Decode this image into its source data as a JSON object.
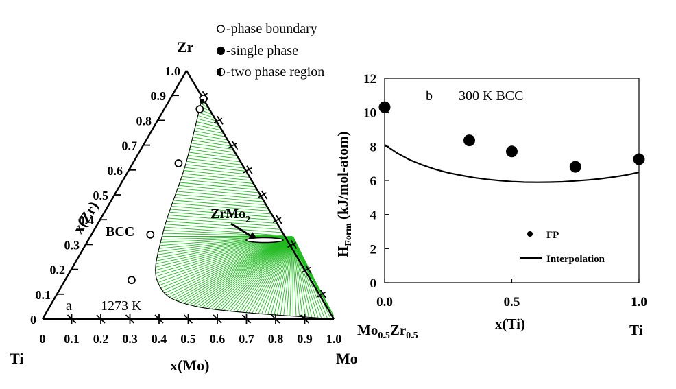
{
  "chart_data": [
    {
      "type": "ternary",
      "panel_label": "a",
      "temperature_label": "1273 K",
      "vertices": {
        "left": "Ti",
        "top": "Zr",
        "right": "Mo"
      },
      "bottom_axis_label": "x(Mo)",
      "left_axis_label": "x(Zr)",
      "tick_labels": [
        "0",
        "0.1",
        "0.2",
        "0.3",
        "0.4",
        "0.5",
        "0.6",
        "0.7",
        "0.8",
        "0.9",
        "1.0"
      ],
      "region_labels": {
        "bcc": "BCC"
      },
      "compound": {
        "label_base": "ZrMo",
        "label_sub": "2",
        "x_mo": 0.667,
        "x_zr": 0.333
      },
      "legend": {
        "phase_boundary": "-phase boundary",
        "single_phase": "-single phase",
        "two_phase": "-two phase region"
      },
      "series": {
        "phase_boundary_points": [
          {
            "x_mo": 0.114,
            "x_zr": 0.887
          },
          {
            "x_mo": 0.122,
            "x_zr": 0.845
          },
          {
            "x_mo": 0.157,
            "x_zr": 0.627
          },
          {
            "x_mo": 0.202,
            "x_zr": 0.34
          },
          {
            "x_mo": 0.228,
            "x_zr": 0.157
          }
        ],
        "single_phase_points": [
          {
            "x_mo": 0.114,
            "x_zr": 0.877
          }
        ],
        "two_phase_boundary": [
          {
            "x_mo": 0.107,
            "x_zr": 0.893
          },
          {
            "x_mo": 0.184,
            "x_zr": 0.62
          },
          {
            "x_mo": 0.241,
            "x_zr": 0.35
          },
          {
            "x_mo": 0.321,
            "x_zr": 0.15
          },
          {
            "x_mo": 0.505,
            "x_zr": 0.05
          },
          {
            "x_mo": 1.0,
            "x_zr": 0.0
          }
        ]
      }
    },
    {
      "type": "scatter+line",
      "panel_label": "b",
      "title": "300 K BCC",
      "ylabel_base": "H",
      "ylabel_sub": "Form",
      "ylabel_rest": " (kJ/mol-atom)",
      "xlabel": "x(Ti)",
      "x_endpoint_left_base": "Mo",
      "x_endpoint_left_sub1": "0.5",
      "x_endpoint_left_mid": "Zr",
      "x_endpoint_left_sub2": "0.5",
      "x_endpoint_right": "Ti",
      "xlim": [
        0,
        1
      ],
      "ylim": [
        0,
        12
      ],
      "x_ticks": [
        "0.0",
        "0.5",
        "1.0"
      ],
      "y_ticks": [
        "0",
        "2",
        "4",
        "6",
        "8",
        "10",
        "12"
      ],
      "legend": {
        "position": "bottom-right"
      },
      "series": [
        {
          "name": "FP",
          "kind": "scatter",
          "x": [
            0.0,
            0.333,
            0.5,
            0.75,
            1.0
          ],
          "y": [
            10.3,
            8.35,
            7.7,
            6.8,
            7.25
          ]
        },
        {
          "name": "Interpolation",
          "kind": "line",
          "x": [
            0.0,
            0.05,
            0.1,
            0.15,
            0.2,
            0.25,
            0.3,
            0.35,
            0.4,
            0.45,
            0.5,
            0.55,
            0.6,
            0.65,
            0.7,
            0.75,
            0.8,
            0.85,
            0.9,
            0.95,
            1.0
          ],
          "y": [
            8.1,
            7.6,
            7.2,
            6.9,
            6.65,
            6.45,
            6.3,
            6.17,
            6.07,
            5.99,
            5.93,
            5.9,
            5.89,
            5.9,
            5.92,
            5.97,
            6.03,
            6.1,
            6.2,
            6.32,
            6.48
          ]
        }
      ]
    }
  ]
}
